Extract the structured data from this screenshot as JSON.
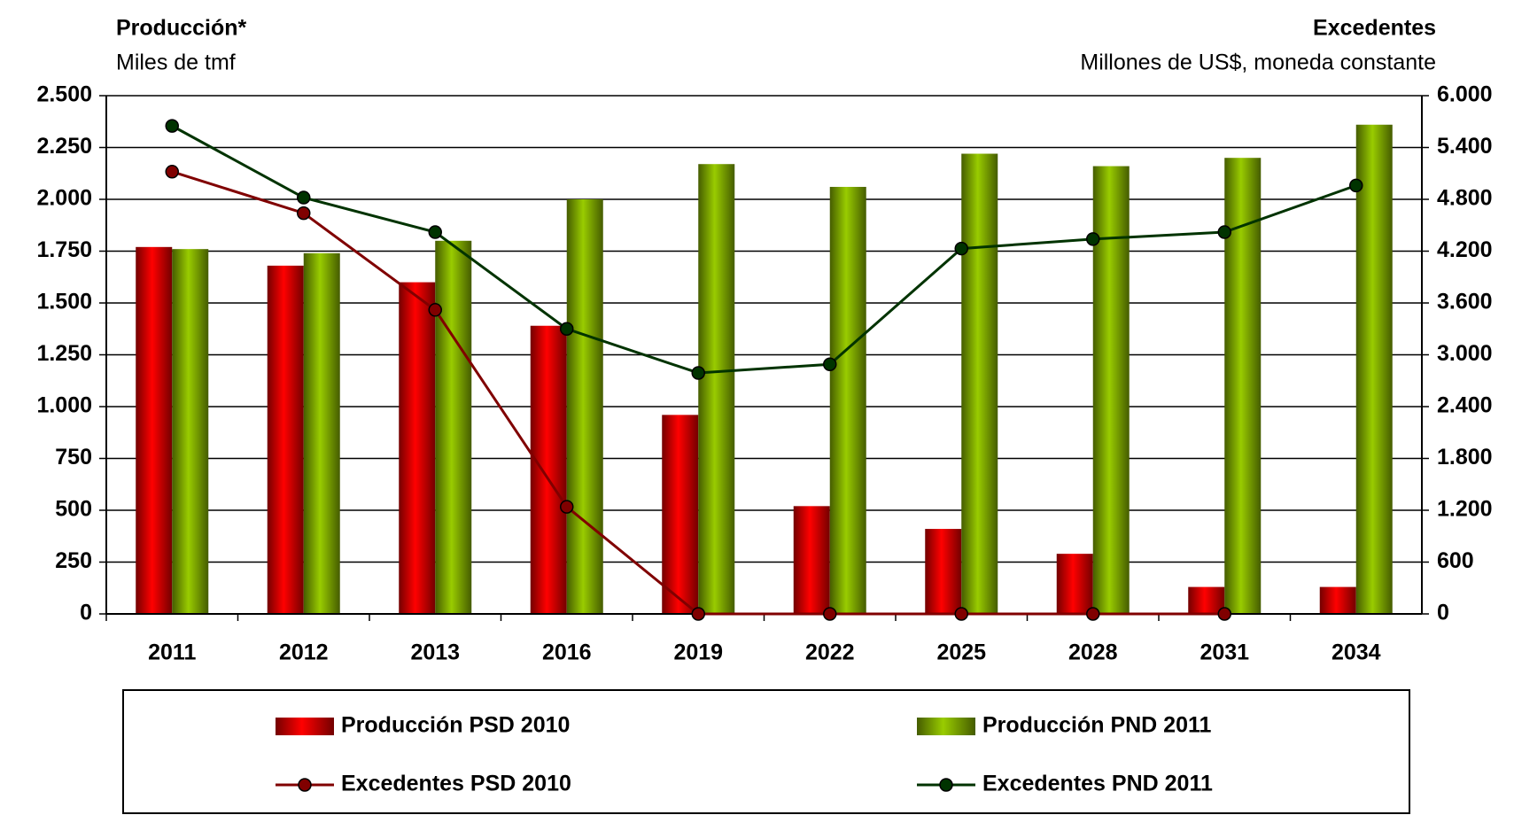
{
  "chart_data": {
    "type": "bar",
    "title": "Producción*",
    "subtitle": "Miles de tmf",
    "y2_title": "Excedentes",
    "y2_subtitle": "Millones de US$, moneda constante",
    "categories": [
      "2011",
      "2012",
      "2013",
      "2016",
      "2019",
      "2022",
      "2025",
      "2028",
      "2031",
      "2034"
    ],
    "series": [
      {
        "name": "Producción PSD 2010",
        "type": "bar",
        "color": "#ff0000",
        "values": [
          1770,
          1680,
          1600,
          1390,
          960,
          520,
          410,
          290,
          130,
          130
        ]
      },
      {
        "name": "Producción PND 2011",
        "type": "bar",
        "color": "#99cc00",
        "values": [
          1760,
          1740,
          1800,
          2000,
          2170,
          2060,
          2220,
          2160,
          2200,
          2360
        ]
      },
      {
        "name": "Excedentes PSD 2010",
        "type": "line",
        "axis": "y2",
        "color": "#800000",
        "values": [
          5120,
          4640,
          3520,
          1240,
          0,
          0,
          0,
          0,
          0,
          null
        ]
      },
      {
        "name": "Excedentes PND 2011",
        "type": "line",
        "axis": "y2",
        "color": "#003300",
        "values": [
          5650,
          4820,
          4420,
          3300,
          2790,
          2890,
          4230,
          4340,
          4420,
          4960
        ]
      }
    ],
    "ylim": [
      0,
      2500
    ],
    "yticks": [
      0,
      250,
      500,
      750,
      {
        "value": 1000,
        "label": "1.000"
      },
      {
        "value": 1250,
        "label": "1.250"
      },
      {
        "value": 1500,
        "label": "1.500"
      },
      {
        "value": 1750,
        "label": "1.750"
      },
      {
        "value": 2000,
        "label": "2.000"
      },
      {
        "value": 2250,
        "label": "2.250"
      },
      {
        "value": 2500,
        "label": "2.500"
      }
    ],
    "y2lim": [
      0,
      6000
    ],
    "y2ticks": [
      0,
      600,
      {
        "value": 1200,
        "label": "1.200"
      },
      {
        "value": 1800,
        "label": "1.800"
      },
      {
        "value": 2400,
        "label": "2.400"
      },
      {
        "value": 3000,
        "label": "3.000"
      },
      {
        "value": 3600,
        "label": "3.600"
      },
      {
        "value": 4200,
        "label": "4.200"
      },
      {
        "value": 4800,
        "label": "4.800"
      },
      {
        "value": 5400,
        "label": "5.400"
      },
      {
        "value": 6000,
        "label": "6.000"
      }
    ],
    "grid": true,
    "legend": "bottom"
  }
}
